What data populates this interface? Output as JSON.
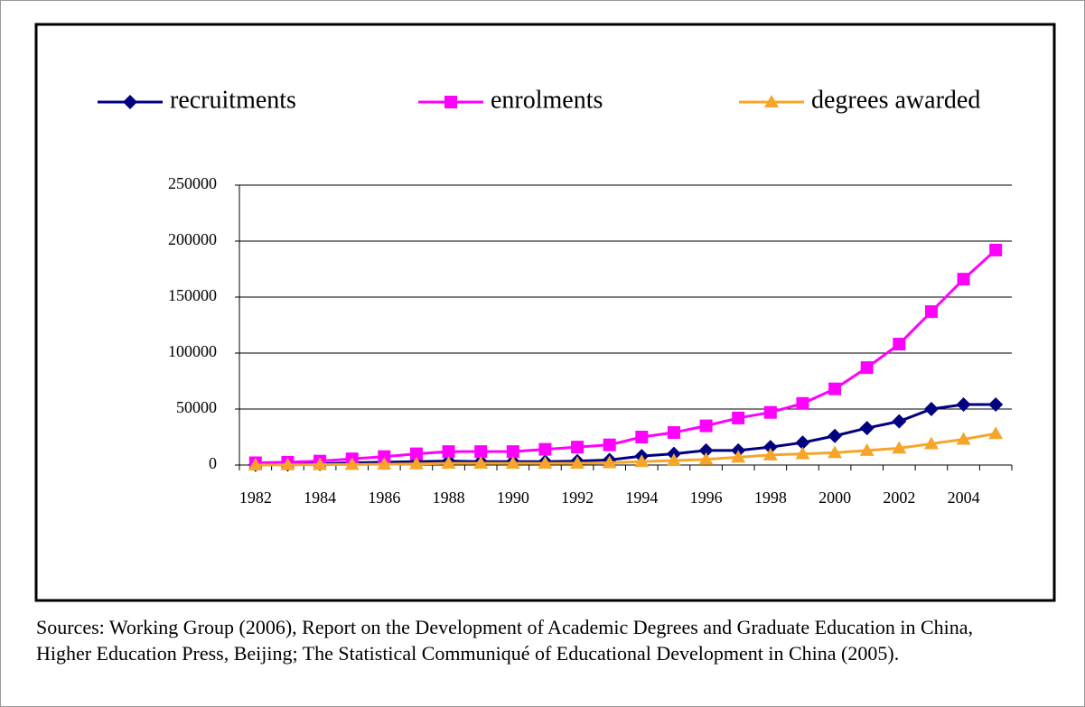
{
  "chart_data": {
    "type": "line",
    "categories": [
      "1982",
      null,
      "1984",
      null,
      "1986",
      null,
      "1988",
      null,
      "1990",
      null,
      "1992",
      null,
      "1994",
      null,
      "1996",
      null,
      "1998",
      null,
      "2000",
      null,
      "2002",
      null,
      "2004",
      null
    ],
    "series": [
      {
        "name": "recruitments",
        "color": "#000080",
        "marker": "diamond",
        "values": [
          300,
          500,
          1000,
          2000,
          2500,
          3000,
          3500,
          3000,
          3000,
          3000,
          3500,
          4500,
          8000,
          10000,
          13000,
          13000,
          16000,
          20000,
          26000,
          33000,
          39000,
          50000,
          54000,
          54000
        ]
      },
      {
        "name": "enrolments",
        "color": "#ff00ff",
        "marker": "square",
        "values": [
          2000,
          2500,
          3500,
          5500,
          7500,
          10000,
          12000,
          12000,
          12000,
          14000,
          16000,
          18000,
          25000,
          29000,
          35000,
          42000,
          47000,
          55000,
          68000,
          87000,
          108000,
          137000,
          166000,
          192000
        ]
      },
      {
        "name": "degrees awarded",
        "color": "#f7a52a",
        "marker": "triangle",
        "values": [
          0,
          200,
          300,
          500,
          700,
          1000,
          1500,
          1500,
          1500,
          1500,
          1500,
          2000,
          3000,
          4000,
          5000,
          7000,
          9000,
          10000,
          11000,
          13000,
          15000,
          19000,
          23000,
          28000
        ]
      }
    ],
    "ylim": [
      0,
      250000
    ],
    "yticks": [
      0,
      50000,
      100000,
      150000,
      200000,
      250000
    ],
    "grid": true,
    "legend": "top",
    "source": "Sources: Working Group (2006), Report on the Development of Academic Degrees and Graduate Education in China, Higher Education Press, Beijing; The Statistical Communiqué of Educational Development in China (2005)."
  }
}
